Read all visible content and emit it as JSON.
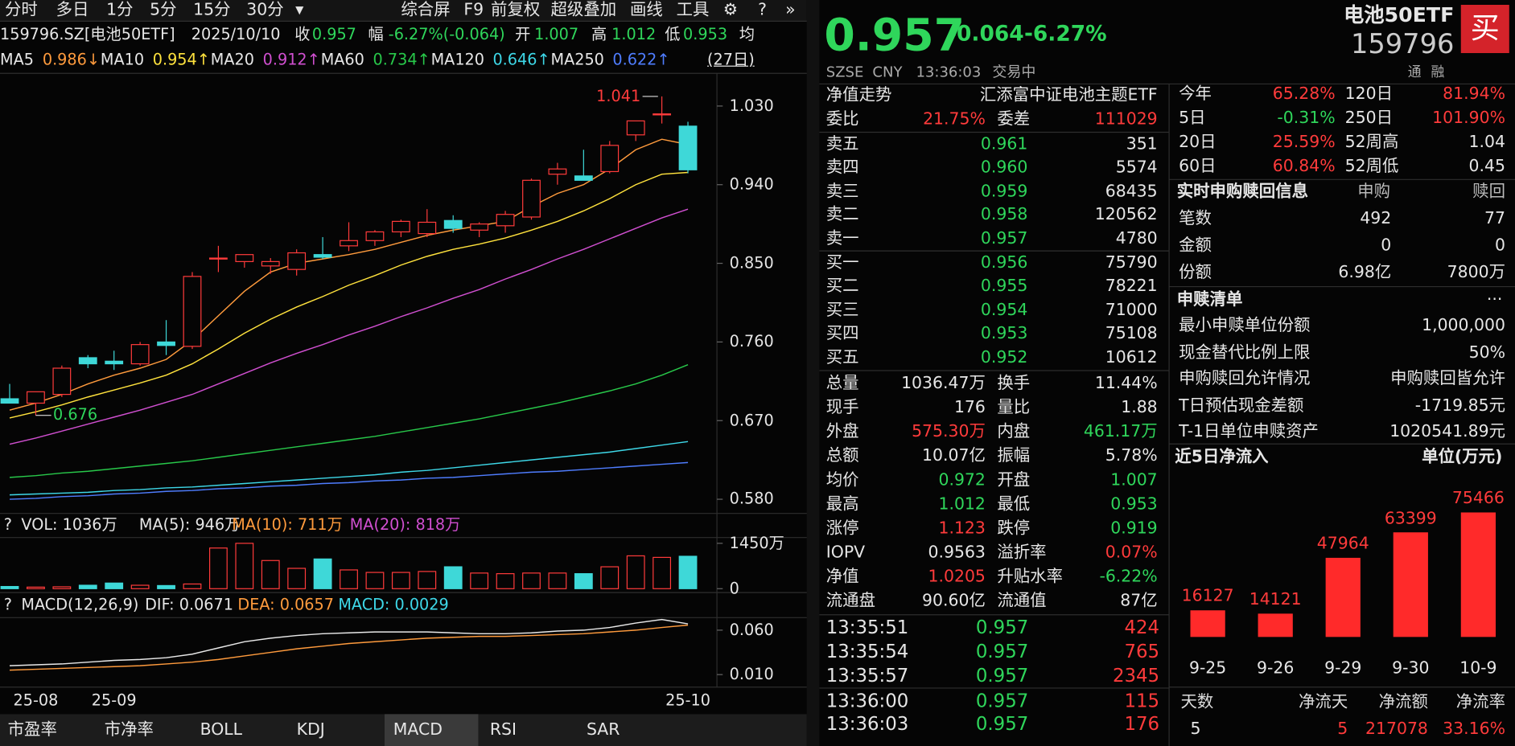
{
  "toolbar": {
    "periods": [
      "分时",
      "多日",
      "1分",
      "5分",
      "15分",
      "30分"
    ],
    "tools": [
      "综合屏",
      "F9",
      "前复权",
      "超级叠加",
      "画线",
      "工具"
    ],
    "icons": [
      "▾",
      "⚙",
      "?",
      "»"
    ]
  },
  "quote_line": {
    "code": "159796.SZ[电池50ETF]",
    "date": "2025/10/10",
    "items": [
      {
        "k": "收",
        "v": "0.957"
      },
      {
        "k": "幅",
        "v": "-6.27%(-0.064)"
      },
      {
        "k": "开",
        "v": "1.007"
      },
      {
        "k": "高",
        "v": "1.012"
      },
      {
        "k": "低",
        "v": "0.953"
      }
    ],
    "avg": "均"
  },
  "range_button": "(27日)",
  "tabs": [
    "市盈率",
    "市净率",
    "BOLL",
    "KDJ",
    "MACD",
    "RSI",
    "SAR"
  ],
  "chart_data": [
    {
      "type": "candlestick",
      "categories": [
        null,
        "25-08",
        null,
        null,
        "25-09",
        null,
        null,
        null,
        null,
        null,
        null,
        null,
        null,
        null,
        null,
        null,
        null,
        null,
        null,
        null,
        null,
        null,
        null,
        null,
        null,
        null,
        "25-10"
      ],
      "open": [
        0.695,
        0.69,
        0.7,
        0.742,
        0.738,
        0.735,
        0.76,
        0.755,
        0.855,
        0.852,
        0.847,
        0.843,
        0.86,
        0.87,
        0.876,
        0.886,
        0.884,
        0.899,
        0.888,
        0.893,
        0.903,
        0.952,
        0.95,
        0.955,
        0.997,
        1.02,
        1.007
      ],
      "high": [
        0.712,
        0.7,
        0.733,
        0.745,
        0.75,
        0.76,
        0.785,
        0.84,
        0.87,
        0.86,
        0.856,
        0.866,
        0.88,
        0.897,
        0.888,
        0.9,
        0.912,
        0.905,
        0.897,
        0.91,
        0.947,
        0.965,
        0.98,
        0.99,
        1.013,
        1.041,
        1.012
      ],
      "low": [
        0.69,
        0.676,
        0.697,
        0.73,
        0.728,
        0.733,
        0.745,
        0.752,
        0.84,
        0.845,
        0.838,
        0.836,
        0.855,
        0.864,
        0.87,
        0.88,
        0.88,
        0.885,
        0.88,
        0.885,
        0.9,
        0.94,
        0.945,
        0.953,
        0.99,
        1.01,
        0.953
      ],
      "close": [
        0.69,
        0.703,
        0.73,
        0.735,
        0.735,
        0.757,
        0.756,
        0.835,
        0.856,
        0.86,
        0.852,
        0.862,
        0.857,
        0.876,
        0.886,
        0.898,
        0.897,
        0.89,
        0.895,
        0.906,
        0.945,
        0.958,
        0.945,
        0.985,
        1.013,
        1.021,
        0.957
      ],
      "up_color": "#ff3b3b",
      "down_color": "#3ed8d8",
      "ylim": [
        0.566,
        1.063
      ],
      "yticks": [
        {
          "value": 1.03,
          "label": "1.030"
        },
        {
          "value": 0.94,
          "label": "0.940"
        },
        {
          "value": 0.85,
          "label": "0.850"
        },
        {
          "value": 0.76,
          "label": "0.760"
        },
        {
          "value": 0.67,
          "label": "0.670"
        },
        {
          "value": 0.58,
          "label": "0.580"
        }
      ],
      "high_label": "1.041",
      "low_label": "0.676",
      "series": [
        {
          "name": "MA5",
          "label": "0.986↓",
          "color": "#ff9b3d",
          "values": [
            0.682,
            0.69,
            0.7,
            0.712,
            0.722,
            0.73,
            0.74,
            0.762,
            0.79,
            0.818,
            0.84,
            0.85,
            0.855,
            0.86,
            0.866,
            0.874,
            0.882,
            0.888,
            0.893,
            0.898,
            0.915,
            0.93,
            0.94,
            0.958,
            0.98,
            0.992,
            0.986
          ]
        },
        {
          "name": "MA10",
          "label": "0.954↑",
          "color": "#ffe23d",
          "values": [
            0.673,
            0.68,
            0.688,
            0.697,
            0.705,
            0.713,
            0.722,
            0.735,
            0.752,
            0.77,
            0.786,
            0.8,
            0.812,
            0.825,
            0.836,
            0.848,
            0.858,
            0.866,
            0.872,
            0.879,
            0.888,
            0.898,
            0.91,
            0.924,
            0.94,
            0.952,
            0.954
          ]
        },
        {
          "name": "MA20",
          "label": "0.912↑",
          "color": "#d04fd0",
          "values": [
            0.643,
            0.65,
            0.658,
            0.666,
            0.674,
            0.682,
            0.691,
            0.7,
            0.712,
            0.724,
            0.736,
            0.747,
            0.757,
            0.768,
            0.778,
            0.789,
            0.799,
            0.81,
            0.82,
            0.832,
            0.843,
            0.855,
            0.866,
            0.878,
            0.89,
            0.902,
            0.912
          ]
        },
        {
          "name": "MA60",
          "label": "0.734↑",
          "color": "#28c84a",
          "values": [
            0.605,
            0.607,
            0.61,
            0.612,
            0.615,
            0.618,
            0.621,
            0.624,
            0.628,
            0.632,
            0.636,
            0.64,
            0.644,
            0.648,
            0.652,
            0.657,
            0.662,
            0.667,
            0.672,
            0.678,
            0.684,
            0.69,
            0.697,
            0.704,
            0.712,
            0.722,
            0.734
          ]
        },
        {
          "name": "MA120",
          "label": "0.646↑",
          "color": "#3ed8e8",
          "values": [
            0.585,
            0.586,
            0.587,
            0.588,
            0.59,
            0.591,
            0.593,
            0.594,
            0.596,
            0.598,
            0.6,
            0.602,
            0.604,
            0.606,
            0.608,
            0.611,
            0.613,
            0.616,
            0.619,
            0.622,
            0.625,
            0.628,
            0.631,
            0.634,
            0.638,
            0.642,
            0.646
          ]
        },
        {
          "name": "MA250",
          "label": "0.622↑",
          "color": "#4f7dff",
          "values": [
            0.58,
            0.581,
            0.583,
            0.584,
            0.586,
            0.587,
            0.589,
            0.59,
            0.592,
            0.593,
            0.595,
            0.596,
            0.598,
            0.599,
            0.601,
            0.602,
            0.604,
            0.605,
            0.607,
            0.609,
            0.611,
            0.612,
            0.614,
            0.616,
            0.618,
            0.62,
            0.622
          ]
        }
      ]
    },
    {
      "type": "bar",
      "values": [
        70,
        50,
        60,
        110,
        180,
        110,
        100,
        150,
        1300,
        1450,
        900,
        650,
        950,
        600,
        520,
        520,
        550,
        700,
        500,
        480,
        500,
        500,
        480,
        700,
        1050,
        1000,
        1036
      ],
      "ylim": [
        0,
        1635
      ],
      "yticks": [
        {
          "value": 1450,
          "label": "1450万"
        },
        0
      ],
      "legend": [
        "VOL: 1036万",
        "MA(5): 946万",
        "MA(10): 711万",
        "MA(20): 818万"
      ],
      "legend_colors": [
        "#e6e6e6",
        "#e6e6e6",
        "#ff9b3d",
        "#d04fd0"
      ]
    },
    {
      "type": "line",
      "ylim": [
        -0.0041,
        0.0741
      ],
      "yticks": [
        {
          "value": 0.06,
          "label": "0.060"
        },
        {
          "value": 0.01,
          "label": "0.010"
        }
      ],
      "legend": [
        "MACD(12,26,9)",
        "DIF: 0.0671",
        "DEA: 0.0657",
        "MACD: 0.0029"
      ],
      "legend_colors": [
        "#e6e6e6",
        "#e6e6e6",
        "#ff9b3d",
        "#3ed8e8"
      ],
      "series": [
        {
          "color": "#e8e8e8",
          "values": [
            0.02,
            0.021,
            0.022,
            0.024,
            0.026,
            0.027,
            0.029,
            0.033,
            0.04,
            0.047,
            0.051,
            0.054,
            0.056,
            0.057,
            0.058,
            0.058,
            0.058,
            0.057,
            0.056,
            0.056,
            0.057,
            0.059,
            0.06,
            0.063,
            0.068,
            0.072,
            0.0671
          ]
        },
        {
          "color": "#ff9b3d",
          "values": [
            0.015,
            0.016,
            0.017,
            0.018,
            0.019,
            0.02,
            0.022,
            0.024,
            0.027,
            0.031,
            0.035,
            0.039,
            0.042,
            0.045,
            0.047,
            0.049,
            0.051,
            0.052,
            0.053,
            0.053,
            0.054,
            0.055,
            0.056,
            0.058,
            0.06,
            0.063,
            0.0657
          ]
        }
      ]
    },
    {
      "type": "bar",
      "title": "近5日净流入",
      "unit": "单位(万元)",
      "categories": [
        "9-25",
        "9-26",
        "9-29",
        "9-30",
        "10-9"
      ],
      "values": [
        16127,
        14121,
        47964,
        63399,
        75466
      ],
      "color": "#ff2a2a",
      "ylim": [
        0,
        93600
      ]
    }
  ],
  "header": {
    "price": "0.957",
    "change": "-0.064",
    "change_pct": "-6.27%",
    "name": "电池50ETF",
    "code": "159796",
    "buy": "买",
    "sub": [
      "SZSE",
      "CNY",
      "13:36:03",
      "交易中"
    ],
    "tags": [
      "通",
      "融"
    ]
  },
  "nav_row": {
    "label": "净值走势",
    "value": "汇添富中证电池主题ETF"
  },
  "ratio": [
    {
      "t": "委比"
    },
    {
      "t": "21.75%",
      "c": "#ff3b3b"
    },
    {
      "t": "委差"
    },
    {
      "t": "111029",
      "c": "#ff3b3b"
    }
  ],
  "asks": [
    [
      "卖五",
      "0.961",
      "351"
    ],
    [
      "卖四",
      "0.960",
      "5574"
    ],
    [
      "卖三",
      "0.959",
      "68435"
    ],
    [
      "卖二",
      "0.958",
      "120562"
    ],
    [
      "卖一",
      "0.957",
      "4780"
    ]
  ],
  "bids": [
    [
      "买一",
      "0.956",
      "75790"
    ],
    [
      "买二",
      "0.955",
      "78221"
    ],
    [
      "买三",
      "0.954",
      "71000"
    ],
    [
      "买四",
      "0.953",
      "75108"
    ],
    [
      "买五",
      "0.952",
      "10612"
    ]
  ],
  "book_price_color": "#2fd65b",
  "stats": [
    [
      {
        "t": "总量"
      },
      {
        "t": "1036.47万"
      },
      {
        "t": "换手"
      },
      {
        "t": "11.44%"
      }
    ],
    [
      {
        "t": "现手"
      },
      {
        "t": "176"
      },
      {
        "t": "量比"
      },
      {
        "t": "1.88"
      }
    ],
    [
      {
        "t": "外盘"
      },
      {
        "t": "575.30万",
        "c": "#ff3b3b"
      },
      {
        "t": "内盘"
      },
      {
        "t": "461.17万",
        "c": "#2fd65b"
      }
    ],
    [
      {
        "t": "总额"
      },
      {
        "t": "10.07亿"
      },
      {
        "t": "振幅"
      },
      {
        "t": "5.78%"
      }
    ],
    [
      {
        "t": "均价"
      },
      {
        "t": "0.972",
        "c": "#2fd65b"
      },
      {
        "t": "开盘"
      },
      {
        "t": "1.007",
        "c": "#2fd65b"
      }
    ],
    [
      {
        "t": "最高"
      },
      {
        "t": "1.012",
        "c": "#2fd65b"
      },
      {
        "t": "最低"
      },
      {
        "t": "0.953",
        "c": "#2fd65b"
      }
    ],
    [
      {
        "t": "涨停"
      },
      {
        "t": "1.123",
        "c": "#ff3b3b"
      },
      {
        "t": "跌停"
      },
      {
        "t": "0.919",
        "c": "#2fd65b"
      }
    ],
    [
      {
        "t": "IOPV"
      },
      {
        "t": "0.9563"
      },
      {
        "t": "溢折率"
      },
      {
        "t": "0.07%",
        "c": "#ff3b3b"
      }
    ],
    [
      {
        "t": "净值"
      },
      {
        "t": "1.0205",
        "c": "#ff3b3b"
      },
      {
        "t": "升贴水率"
      },
      {
        "t": "-6.22%",
        "c": "#2fd65b"
      }
    ],
    [
      {
        "t": "流通盘"
      },
      {
        "t": "90.60亿"
      },
      {
        "t": "流通值"
      },
      {
        "t": "87亿"
      }
    ]
  ],
  "trades": [
    [
      "13:35:51",
      "0.957",
      "424"
    ],
    [
      "13:35:54",
      "0.957",
      "765"
    ],
    [
      "13:35:57",
      "0.957",
      "2345"
    ],
    [
      "13:36:00",
      "0.957",
      "115"
    ],
    [
      "13:36:03",
      "0.957",
      "176"
    ]
  ],
  "perf": [
    [
      {
        "t": "今年"
      },
      {
        "t": "65.28%",
        "c": "#ff3b3b"
      },
      {
        "t": "120日"
      },
      {
        "t": "81.94%",
        "c": "#ff3b3b"
      }
    ],
    [
      {
        "t": "5日"
      },
      {
        "t": "-0.31%",
        "c": "#2fd65b"
      },
      {
        "t": "250日"
      },
      {
        "t": "101.90%",
        "c": "#ff3b3b"
      }
    ],
    [
      {
        "t": "20日"
      },
      {
        "t": "25.59%",
        "c": "#ff3b3b"
      },
      {
        "t": "52周高"
      },
      {
        "t": "1.04"
      }
    ],
    [
      {
        "t": "60日"
      },
      {
        "t": "60.84%",
        "c": "#ff3b3b"
      },
      {
        "t": "52周低"
      },
      {
        "t": "0.45"
      }
    ]
  ],
  "creation": {
    "title": "实时申购赎回信息",
    "cols": [
      "申购",
      "赎回"
    ],
    "rows": [
      [
        "笔数",
        "492",
        "77"
      ],
      [
        "金额",
        "0",
        "0"
      ],
      [
        "份额",
        "6.98亿",
        "7800万"
      ]
    ]
  },
  "list": {
    "title": "申赎清单",
    "more": "···",
    "rows": [
      [
        "最小申赎单位份额",
        "1,000,000"
      ],
      [
        "现金替代比例上限",
        "50%"
      ],
      [
        "申购赎回允许情况",
        "申购赎回皆允许"
      ],
      [
        "T日预估现金差额",
        "-1719.85元"
      ],
      [
        "T-1日单位申赎资产",
        "1020541.89元"
      ]
    ]
  },
  "flow_summary": {
    "cols": [
      "天数",
      "净流天",
      "净流额",
      "净流率"
    ],
    "values": [
      "5",
      "5",
      "217078",
      "33.16%"
    ]
  }
}
